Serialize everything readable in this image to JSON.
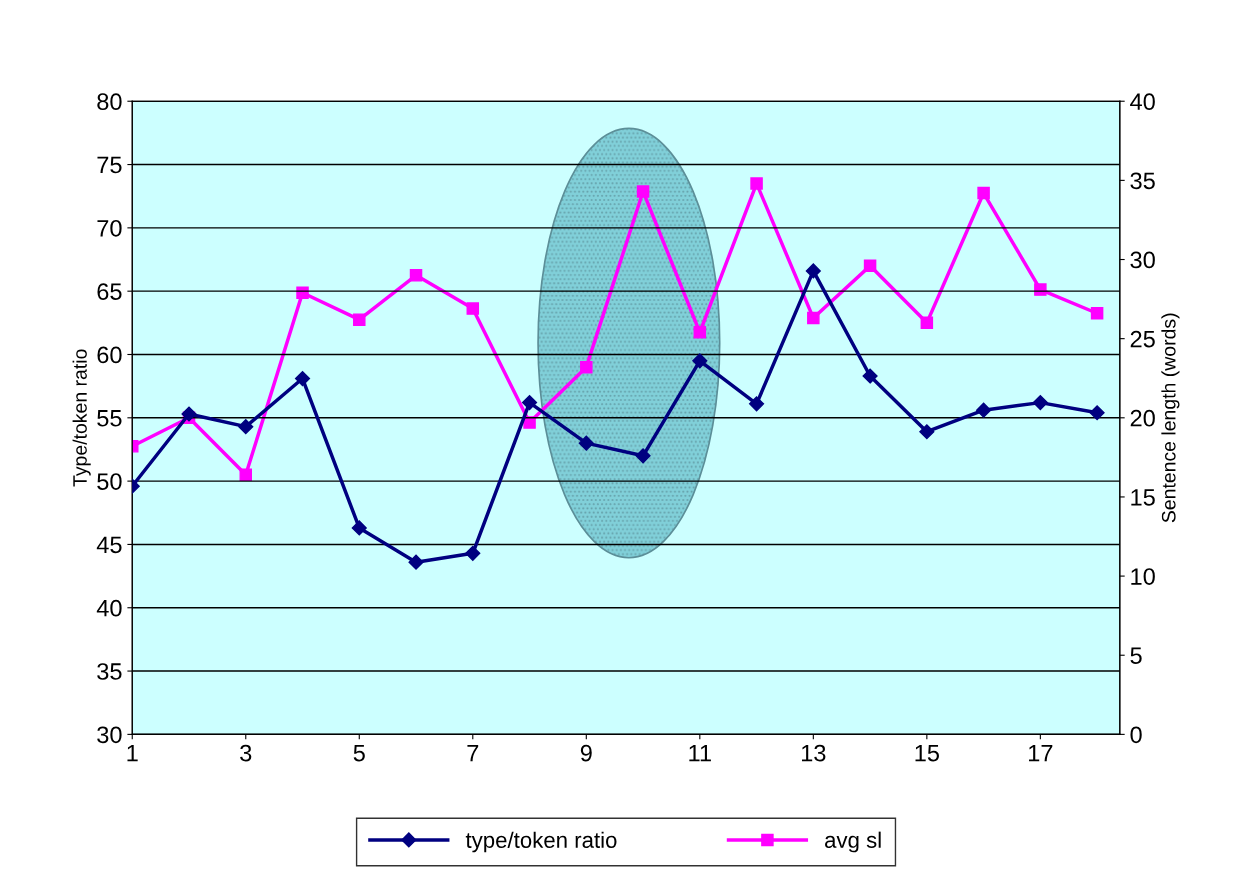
{
  "chart_data": {
    "type": "line",
    "x": [
      1,
      2,
      3,
      4,
      5,
      6,
      7,
      8,
      9,
      10,
      11,
      12,
      13,
      14,
      15,
      16,
      17,
      18
    ],
    "xlim": [
      1,
      18.4
    ],
    "xticks": [
      1,
      3,
      5,
      7,
      9,
      11,
      13,
      15,
      17
    ],
    "ylim": [
      30,
      80
    ],
    "yticks": [
      30,
      35,
      40,
      45,
      50,
      55,
      60,
      65,
      70,
      75,
      80
    ],
    "y2lim": [
      0,
      40
    ],
    "y2ticks": [
      0,
      5,
      10,
      15,
      20,
      25,
      30,
      35,
      40
    ],
    "ylabel": "Type/token ratio",
    "y2label": "Sentence length (words)",
    "series": [
      {
        "name": "type/token ratio",
        "color": "#000080",
        "marker": "diamond",
        "values": [
          49.6,
          55.3,
          54.3,
          58.1,
          46.3,
          43.6,
          44.3,
          56.2,
          53.0,
          52.0,
          59.5,
          56.1,
          66.6,
          58.3,
          53.9,
          55.6,
          56.2,
          55.4
        ]
      },
      {
        "name": "avg sl",
        "color": "#ff00ff",
        "marker": "square",
        "axis": "y2",
        "values": [
          18.2,
          20.0,
          16.4,
          27.9,
          26.2,
          29.0,
          26.9,
          19.7,
          23.2,
          34.3,
          25.4,
          34.8,
          26.3,
          29.6,
          26.0,
          34.2,
          28.1,
          26.6
        ]
      }
    ],
    "grid": "y",
    "legend": "bottom",
    "line_style": "solid"
  }
}
